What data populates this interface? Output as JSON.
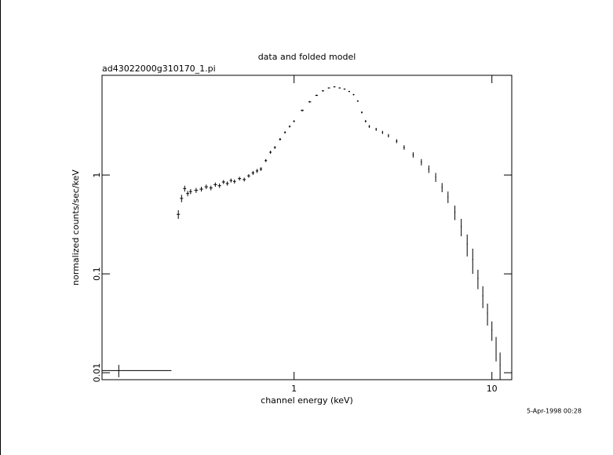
{
  "chart_data": {
    "type": "scatter",
    "title": "data and folded model",
    "subtitle": "ad43022000g310170_1.pi",
    "xlabel": "channel energy (keV)",
    "ylabel": "normalized counts/sec/keV",
    "footer": "5-Apr-1998 00:28",
    "xscale": "log",
    "yscale": "log",
    "xlim": [
      0.107,
      12.6
    ],
    "ylim": [
      0.0085,
      10.2
    ],
    "xticks": [
      1,
      10
    ],
    "yticks": [
      0.01,
      0.1,
      1
    ],
    "color": "#000000",
    "x": [
      0.13,
      0.26,
      0.27,
      0.28,
      0.29,
      0.3,
      0.32,
      0.34,
      0.36,
      0.38,
      0.4,
      0.42,
      0.44,
      0.46,
      0.48,
      0.5,
      0.53,
      0.56,
      0.59,
      0.62,
      0.65,
      0.68,
      0.72,
      0.76,
      0.8,
      0.85,
      0.9,
      0.95,
      1.0,
      1.1,
      1.2,
      1.3,
      1.4,
      1.5,
      1.6,
      1.7,
      1.8,
      1.9,
      2.0,
      2.1,
      2.2,
      2.3,
      2.4,
      2.6,
      2.8,
      3.0,
      3.3,
      3.6,
      4.0,
      4.4,
      4.8,
      5.2,
      5.6,
      6.0,
      6.5,
      7.0,
      7.5,
      8.0,
      8.5,
      9.0,
      9.5,
      10.0,
      10.5,
      11.0
    ],
    "y": [
      0.0105,
      0.4,
      0.58,
      0.73,
      0.65,
      0.68,
      0.7,
      0.72,
      0.76,
      0.74,
      0.8,
      0.78,
      0.85,
      0.82,
      0.88,
      0.86,
      0.92,
      0.9,
      0.98,
      1.05,
      1.1,
      1.15,
      1.4,
      1.7,
      1.9,
      2.3,
      2.7,
      3.1,
      3.5,
      4.5,
      5.5,
      6.4,
      7.1,
      7.6,
      7.8,
      7.6,
      7.4,
      7.0,
      6.5,
      5.6,
      4.3,
      3.5,
      3.1,
      2.9,
      2.7,
      2.5,
      2.2,
      1.9,
      1.6,
      1.35,
      1.15,
      0.95,
      0.75,
      0.6,
      0.42,
      0.3,
      0.2,
      0.14,
      0.09,
      0.06,
      0.04,
      0.027,
      0.018,
      0.012
    ],
    "yerr": [
      0.0015,
      0.04,
      0.05,
      0.05,
      0.04,
      0.04,
      0.04,
      0.04,
      0.04,
      0.04,
      0.04,
      0.04,
      0.04,
      0.04,
      0.04,
      0.04,
      0.04,
      0.04,
      0.04,
      0.05,
      0.05,
      0.05,
      0.05,
      0.06,
      0.06,
      0.07,
      0.07,
      0.08,
      0.08,
      0.1,
      0.1,
      0.1,
      0.1,
      0.1,
      0.1,
      0.1,
      0.1,
      0.1,
      0.1,
      0.1,
      0.1,
      0.1,
      0.1,
      0.1,
      0.1,
      0.1,
      0.1,
      0.1,
      0.1,
      0.1,
      0.1,
      0.1,
      0.08,
      0.08,
      0.07,
      0.06,
      0.05,
      0.04,
      0.02,
      0.015,
      0.01,
      0.006,
      0.005,
      0.004
    ],
    "xerr": [
      0.11,
      0.005,
      0.005,
      0.005,
      0.005,
      0.005,
      0.007,
      0.007,
      0.007,
      0.007,
      0.008,
      0.008,
      0.008,
      0.008,
      0.008,
      0.008,
      0.01,
      0.01,
      0.01,
      0.01,
      0.01,
      0.01,
      0.01,
      0.01,
      0.01,
      0.01,
      0.01,
      0.01,
      0.01,
      0.02,
      0.02,
      0.02,
      0.02,
      0.02,
      0.02,
      0.02,
      0.02,
      0.02,
      0.02,
      0.02,
      0.02,
      0.02,
      0.02,
      0.02,
      0.02,
      0.02,
      0.03,
      0.03,
      0.03,
      0.03,
      0.03,
      0.03,
      0.03,
      0.03,
      0.04,
      0.04,
      0.04,
      0.04,
      0.05,
      0.05,
      0.05,
      0.05,
      0.05,
      0.05
    ]
  }
}
